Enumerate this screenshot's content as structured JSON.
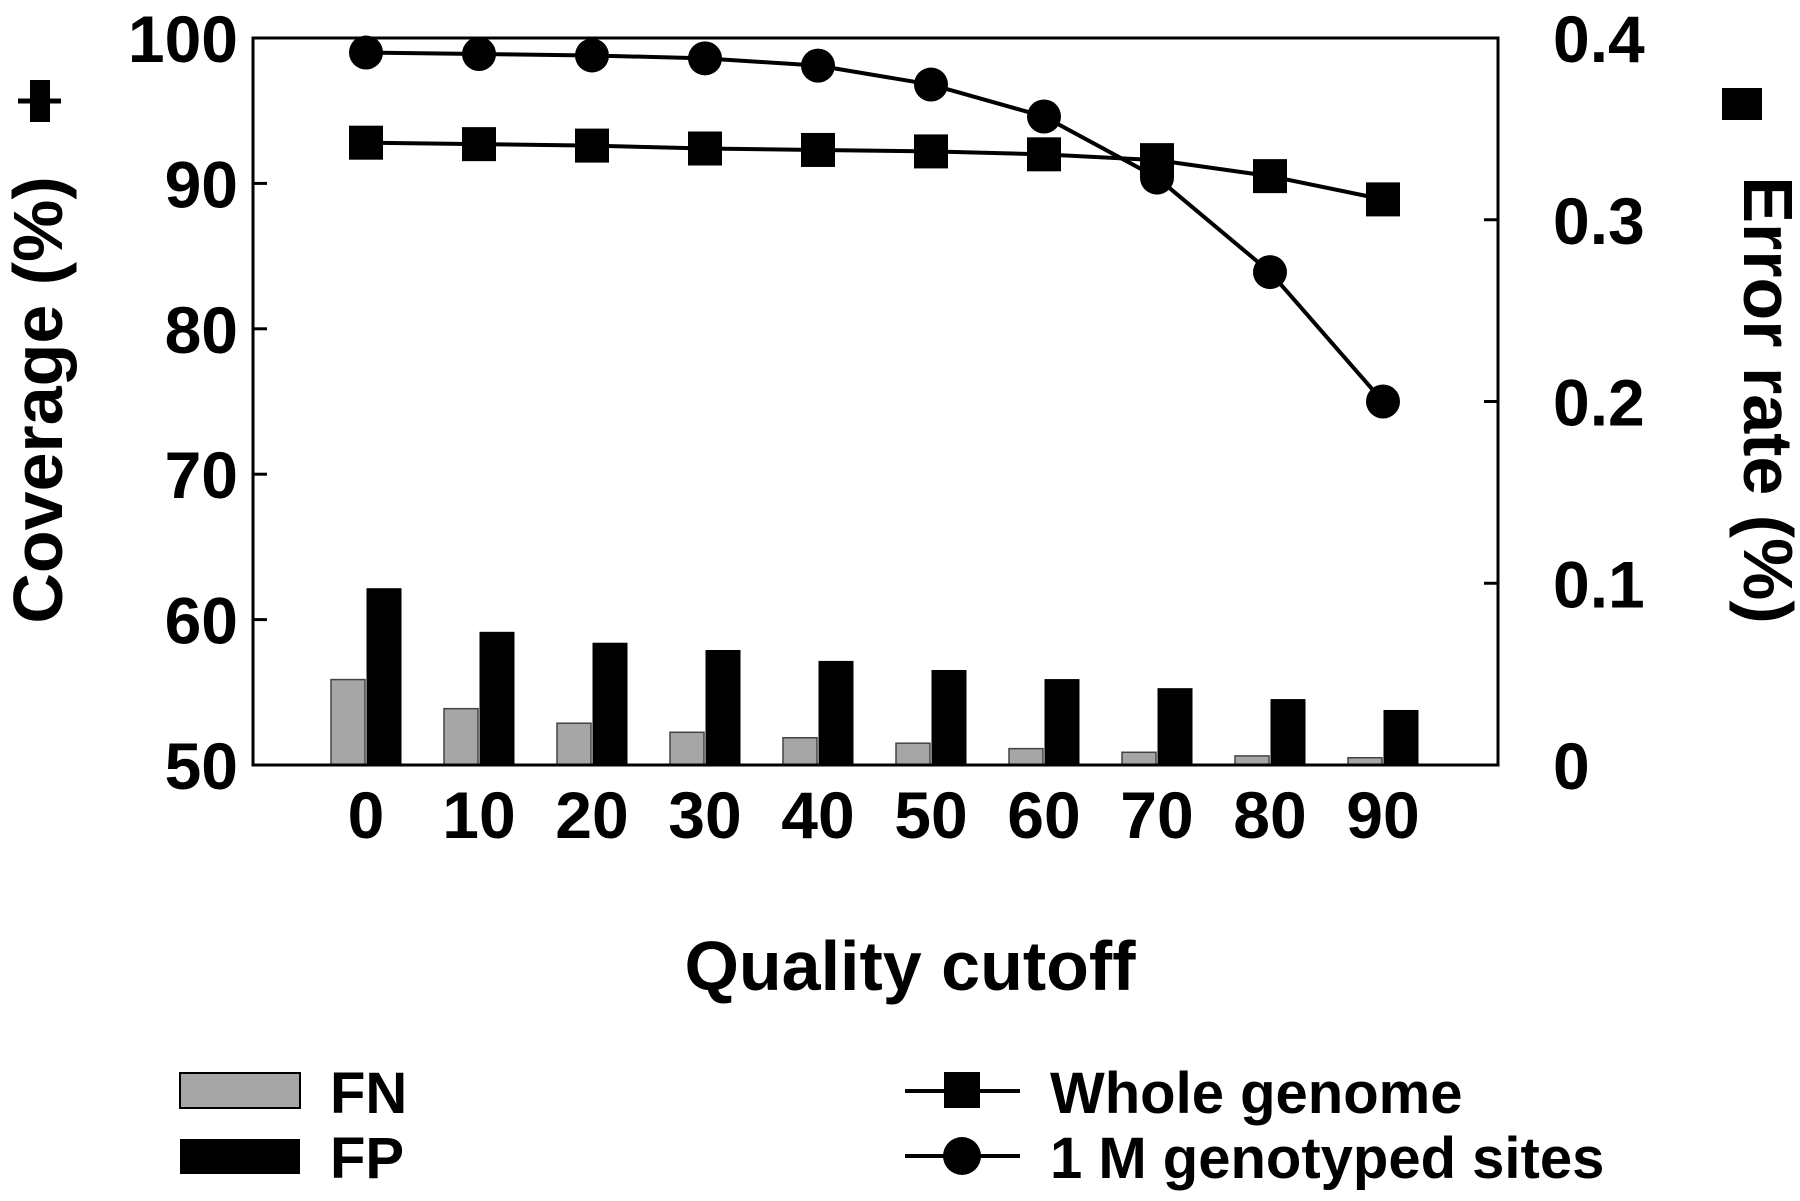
{
  "chart_data": {
    "type": "bar+line",
    "xlabel": "Quality cutoff",
    "ylabel_left": "Coverage (%)",
    "ylabel_right": "Error rate (%)",
    "categories": [
      "0",
      "10",
      "20",
      "30",
      "40",
      "50",
      "60",
      "70",
      "80",
      "90"
    ],
    "ylim_left": [
      50,
      100
    ],
    "yticks_left": [
      "50",
      "60",
      "70",
      "80",
      "90",
      "100"
    ],
    "ylim_right": [
      0,
      0.4
    ],
    "yticks_right": [
      "0",
      "0.1",
      "0.2",
      "0.3",
      "0.4"
    ],
    "bar_series": [
      {
        "name": "FN",
        "axis": "right",
        "color": "#a6a6a6",
        "values": [
          0.047,
          0.031,
          0.023,
          0.018,
          0.015,
          0.012,
          0.009,
          0.007,
          0.005,
          0.004
        ]
      },
      {
        "name": "FP",
        "axis": "right",
        "color": "#000000",
        "values": [
          0.097,
          0.073,
          0.067,
          0.063,
          0.057,
          0.052,
          0.047,
          0.042,
          0.036,
          0.03
        ]
      }
    ],
    "line_series": [
      {
        "name": "Whole genome",
        "axis": "left",
        "marker": "square",
        "values": [
          92.8,
          92.7,
          92.6,
          92.4,
          92.3,
          92.2,
          92.0,
          91.6,
          90.5,
          88.9
        ]
      },
      {
        "name": "1 M genotyped sites",
        "axis": "left",
        "marker": "circle",
        "values": [
          99.0,
          98.9,
          98.8,
          98.6,
          98.1,
          96.8,
          94.6,
          90.4,
          83.9,
          75.0
        ]
      }
    ],
    "grid": false,
    "legend_position": "bottom"
  }
}
